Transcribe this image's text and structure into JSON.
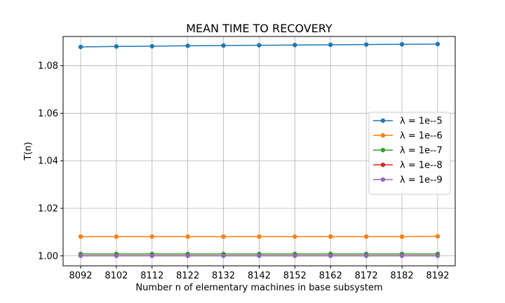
{
  "chart_data": {
    "type": "line",
    "title": "MEAN TIME TO RECOVERY",
    "xlabel": "Number n of elementary machines in base subsystem",
    "ylabel": "T(n)",
    "x": [
      8092,
      8102,
      8112,
      8122,
      8132,
      8142,
      8152,
      8162,
      8172,
      8182,
      8192
    ],
    "xticks": [
      "8092",
      "8102",
      "8112",
      "8122",
      "8132",
      "8142",
      "8152",
      "8162",
      "8172",
      "8182",
      "8192"
    ],
    "yticks": [
      "1.00",
      "1.02",
      "1.04",
      "1.06",
      "1.08"
    ],
    "ylim": [
      0.9958,
      1.0923
    ],
    "grid": true,
    "legend_position": "center-right",
    "series": [
      {
        "name": "λ = 1e--5",
        "color": "#1f77b4",
        "values": [
          1.0879,
          1.0881,
          1.0882,
          1.0884,
          1.0885,
          1.0886,
          1.0887,
          1.0888,
          1.0889,
          1.089,
          1.0891
        ]
      },
      {
        "name": "λ = 1e--6",
        "color": "#ff7f0e",
        "values": [
          1.0081,
          1.0081,
          1.0081,
          1.0081,
          1.0081,
          1.0081,
          1.0081,
          1.0081,
          1.0081,
          1.0081,
          1.0082
        ]
      },
      {
        "name": "λ = 1e--7",
        "color": "#2ca02c",
        "values": [
          1.0008,
          1.0008,
          1.0008,
          1.0008,
          1.0008,
          1.0008,
          1.0008,
          1.0008,
          1.0008,
          1.0008,
          1.0008
        ]
      },
      {
        "name": "λ = 1e--8",
        "color": "#d62728",
        "values": [
          1.0001,
          1.0001,
          1.0001,
          1.0001,
          1.0001,
          1.0001,
          1.0001,
          1.0001,
          1.0001,
          1.0001,
          1.0001
        ]
      },
      {
        "name": "λ = 1e--9",
        "color": "#9467bd",
        "values": [
          1.0,
          1.0,
          1.0,
          1.0,
          1.0,
          1.0,
          1.0,
          1.0,
          1.0,
          1.0,
          1.0
        ]
      }
    ]
  }
}
